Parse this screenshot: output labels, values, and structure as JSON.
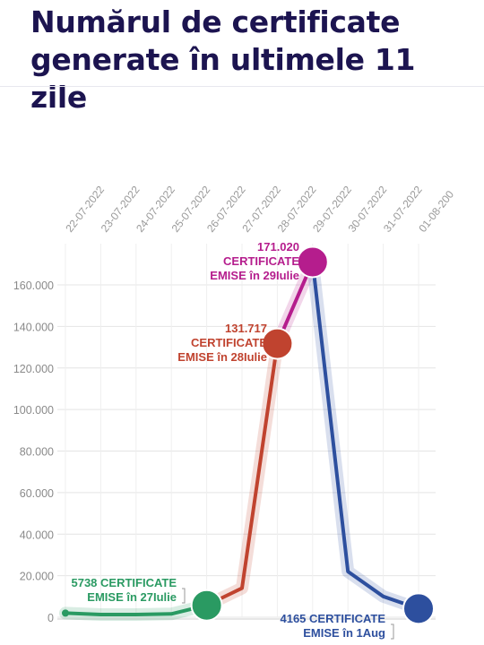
{
  "title": "Numărul de certificate generate în ultimele 11 zile",
  "chart_data": {
    "type": "line",
    "title": "Numărul de certificate generate în ultimele 11 zile",
    "x": [
      "22-07-2022",
      "23-07-2022",
      "24-07-2022",
      "25-07-2022",
      "26-07-2022",
      "27-07-2022",
      "28-07-2022",
      "29-07-2022",
      "30-07-2022",
      "31-07-2022",
      "01-08-200"
    ],
    "y_ticks": [
      "0",
      "20.000",
      "40.000",
      "60.000",
      "80.000",
      "100.000",
      "120.000",
      "140.000",
      "160.000"
    ],
    "ylim": [
      0,
      170000
    ],
    "grid": true,
    "series": [
      {
        "color": "#2a9a62",
        "values": [
          2000,
          1300,
          1300,
          1600,
          5738,
          null,
          null,
          null,
          null,
          null,
          null
        ]
      },
      {
        "color": "#c0432f",
        "values": [
          null,
          null,
          null,
          null,
          5738,
          14000,
          131717,
          null,
          null,
          null,
          null
        ]
      },
      {
        "color": "#b51d8d",
        "values": [
          null,
          null,
          null,
          null,
          null,
          null,
          131717,
          171020,
          null,
          null,
          null
        ]
      },
      {
        "color": "#2d4f9e",
        "values": [
          null,
          null,
          null,
          null,
          null,
          null,
          null,
          171020,
          22000,
          10000,
          4165
        ]
      }
    ],
    "annotations": [
      {
        "x": "26-07-2022",
        "value": 5738,
        "color": "#2a9a62",
        "lines": [
          "5738 CERTIFICATE",
          "EMISE în 27Iulie"
        ]
      },
      {
        "x": "28-07-2022",
        "value": 131717,
        "color": "#c0432f",
        "lines": [
          "131.717",
          "CERTIFICATE",
          "EMISE în 28Iulie"
        ]
      },
      {
        "x": "29-07-2022",
        "value": 171020,
        "color": "#b51d8d",
        "lines": [
          "171.020",
          "CERTIFICATE",
          "EMISE în 29Iulie"
        ]
      },
      {
        "x": "01-08-200",
        "value": 4165,
        "color": "#2d4f9e",
        "lines": [
          "4165 CERTIFICATE",
          "EMISE în 1Aug"
        ]
      }
    ]
  }
}
